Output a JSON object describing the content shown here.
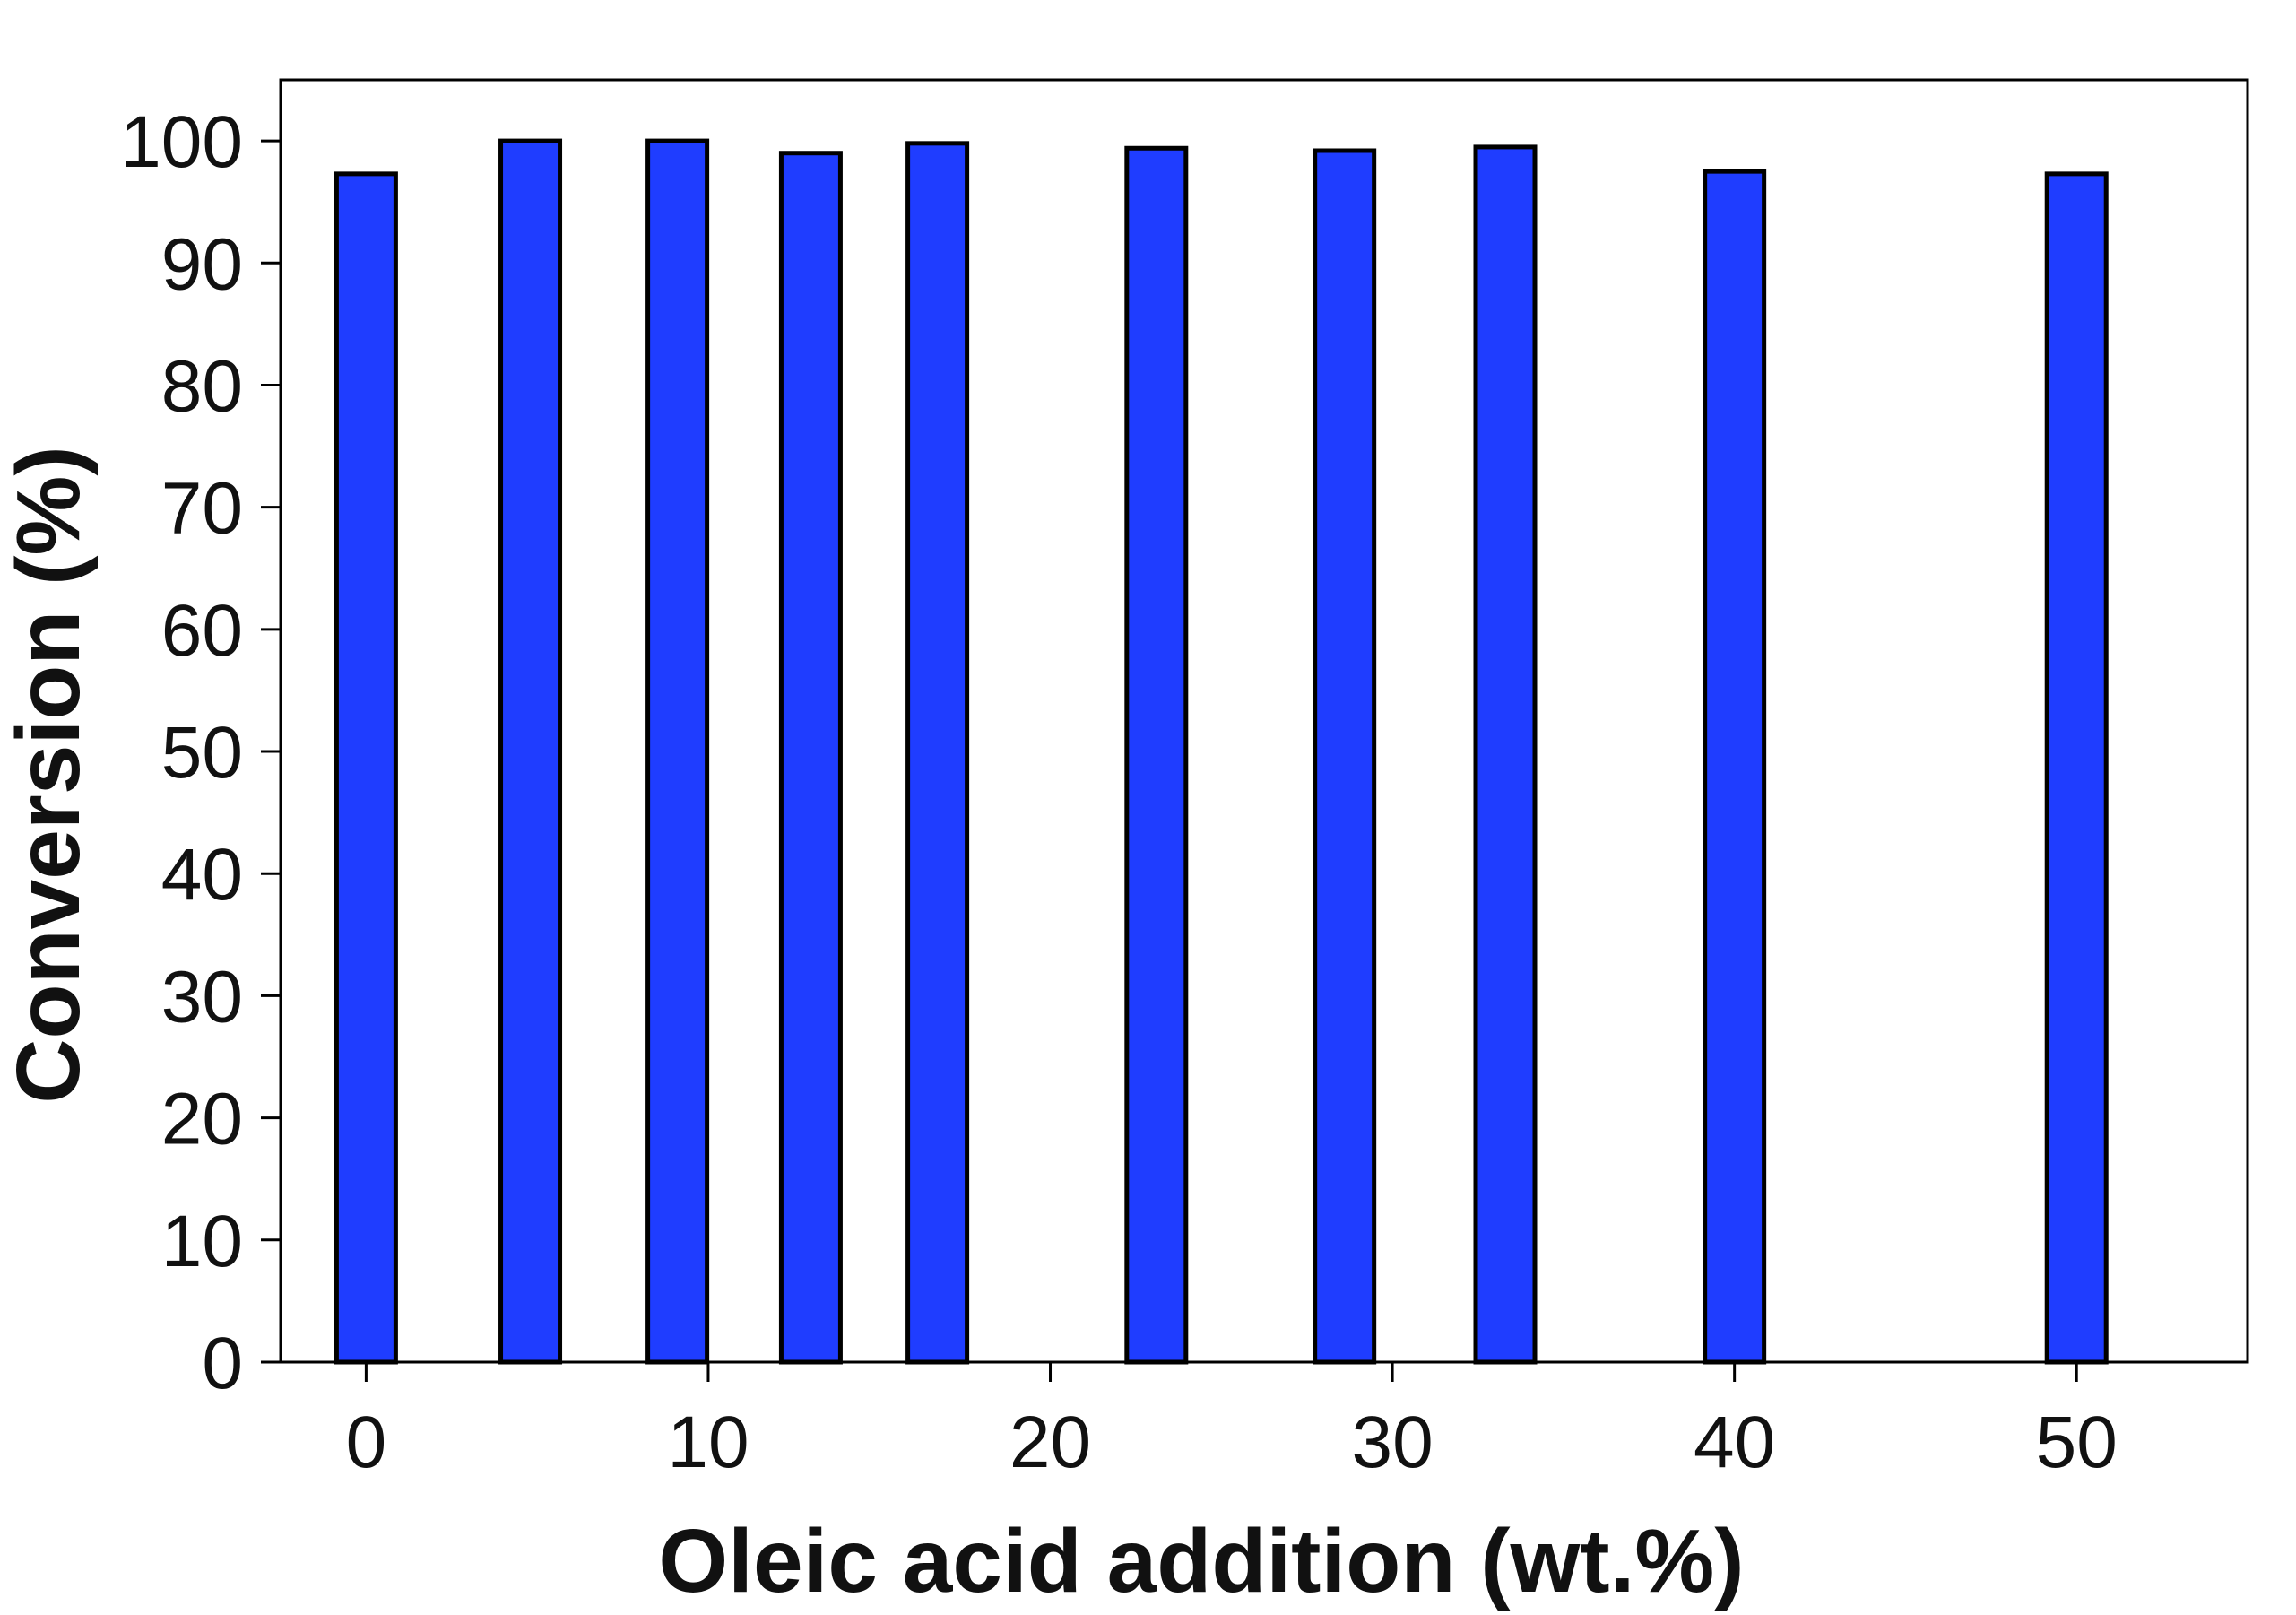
{
  "chart_data": {
    "type": "bar",
    "x_label": "Oleic acid addition (wt.%)",
    "y_label": "Conversion (%)",
    "x": [
      0,
      4.8,
      9.1,
      13,
      16.7,
      23.1,
      28.6,
      33.3,
      40,
      50
    ],
    "values": [
      97.3,
      100,
      100,
      99,
      99.8,
      99.4,
      99.2,
      99.5,
      97.5,
      97.3
    ],
    "color": "#1f3dff",
    "xlim": [
      -2.5,
      55
    ],
    "xticks": [
      0,
      10,
      20,
      30,
      40,
      50
    ],
    "ylim": [
      0,
      105
    ],
    "yticks": [
      0,
      10,
      20,
      30,
      40,
      50,
      60,
      70,
      80,
      90,
      100
    ],
    "grid": false
  }
}
